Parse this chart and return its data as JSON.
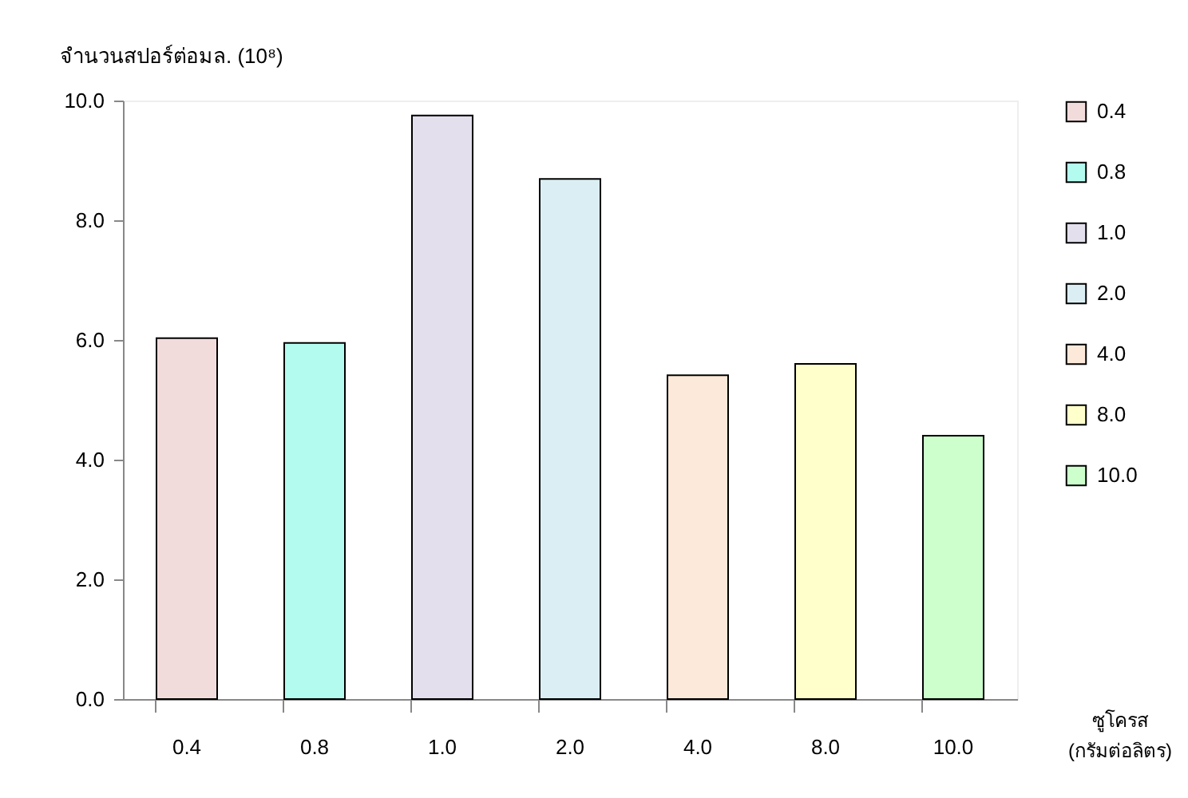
{
  "chart_data": {
    "type": "bar",
    "xlabel": "ซูโครส\n(กรัมต่อลิตร)",
    "ylabel": "จำนวนสปอร์ต่อมล. (10⁸)",
    "categories": [
      "0.4",
      "0.8",
      "1.0",
      "2.0",
      "4.0",
      "8.0",
      "10.0"
    ],
    "series": [
      {
        "name": "0.4",
        "color": "#f2dcdb",
        "values": [
          6.03,
          null,
          null,
          null,
          null,
          null,
          null
        ]
      },
      {
        "name": "0.8",
        "color": "#b3fbee",
        "values": [
          null,
          5.95,
          null,
          null,
          null,
          null,
          null
        ]
      },
      {
        "name": "1.0",
        "color": "#e4dfec",
        "values": [
          null,
          null,
          9.75,
          null,
          null,
          null,
          null
        ]
      },
      {
        "name": "2.0",
        "color": "#dbeef3",
        "values": [
          null,
          null,
          null,
          8.69,
          null,
          null,
          null
        ]
      },
      {
        "name": "4.0",
        "color": "#fde9d9",
        "values": [
          null,
          null,
          null,
          null,
          5.41,
          null,
          null
        ]
      },
      {
        "name": "8.0",
        "color": "#ffffcc",
        "values": [
          null,
          null,
          null,
          null,
          null,
          5.6,
          null
        ]
      },
      {
        "name": "10.0",
        "color": "#ccffcc",
        "values": [
          null,
          null,
          null,
          null,
          null,
          null,
          4.4
        ]
      }
    ],
    "ylim": [
      0,
      10
    ],
    "yticks": [
      {
        "value": 0,
        "label": "0.0"
      },
      {
        "value": 2,
        "label": "2.0"
      },
      {
        "value": 4,
        "label": "4.0"
      },
      {
        "value": 6,
        "label": "6.0"
      },
      {
        "value": 8,
        "label": "8.0"
      },
      {
        "value": 10,
        "label": "10.0"
      }
    ],
    "grid": false,
    "legend": "right"
  }
}
